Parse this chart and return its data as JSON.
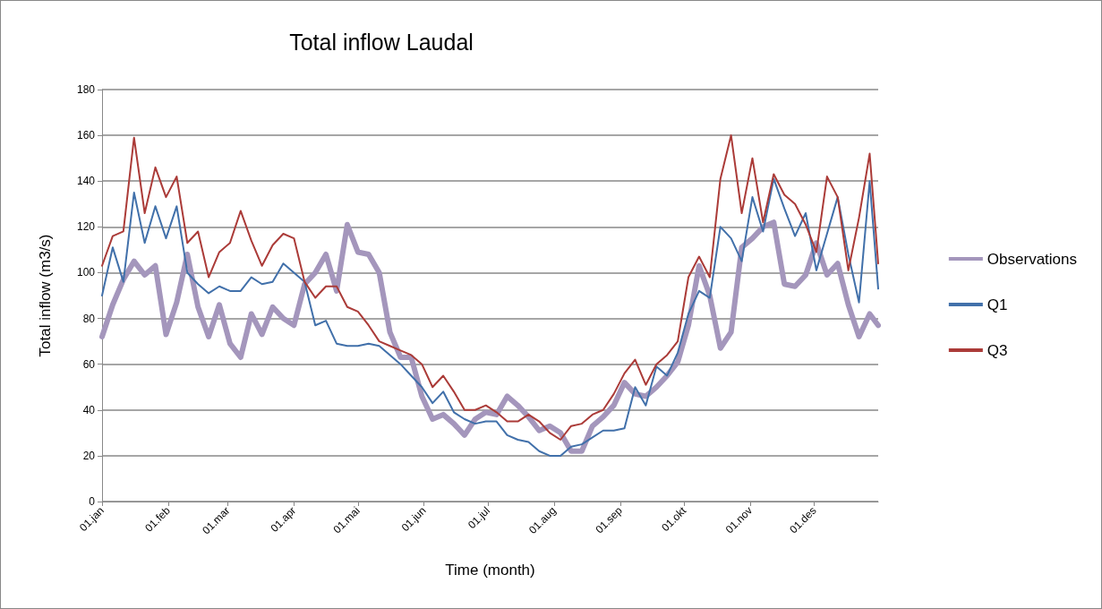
{
  "chart_data": {
    "type": "line",
    "title": "Total inflow Laudal",
    "xlabel": "Time (month)",
    "ylabel": "Total inflow (m3/s)",
    "x": [
      "--01-01",
      "--01-06",
      "--01-11",
      "--01-16",
      "--01-21",
      "--01-26",
      "--01-31",
      "--02-05",
      "--02-10",
      "--02-15",
      "--02-20",
      "--02-25",
      "--03-02",
      "--03-07",
      "--03-12",
      "--03-17",
      "--03-22",
      "--03-27",
      "--04-01",
      "--04-06",
      "--04-11",
      "--04-16",
      "--04-21",
      "--04-26",
      "--05-01",
      "--05-06",
      "--05-11",
      "--05-16",
      "--05-21",
      "--05-26",
      "--05-31",
      "--06-05",
      "--06-10",
      "--06-15",
      "--06-20",
      "--06-25",
      "--06-30",
      "--07-05",
      "--07-10",
      "--07-15",
      "--07-20",
      "--07-25",
      "--07-30",
      "--08-04",
      "--08-09",
      "--08-14",
      "--08-19",
      "--08-24",
      "--08-29",
      "--09-03",
      "--09-08",
      "--09-13",
      "--09-18",
      "--09-23",
      "--09-28",
      "--10-03",
      "--10-08",
      "--10-13",
      "--10-18",
      "--10-23",
      "--10-28",
      "--11-02",
      "--11-07",
      "--11-12",
      "--11-17",
      "--11-22",
      "--11-27",
      "--12-02",
      "--12-07",
      "--12-12",
      "--12-17",
      "--12-22",
      "--12-27",
      "--12-31"
    ],
    "series": [
      {
        "name": "Observations",
        "color": "#a496bc",
        "values": [
          72,
          86,
          97,
          105,
          99,
          103,
          73,
          87,
          108,
          85,
          72,
          86,
          69,
          63,
          82,
          73,
          85,
          80,
          77,
          95,
          100,
          108,
          92,
          121,
          109,
          108,
          100,
          74,
          63,
          63,
          46,
          36,
          38,
          34,
          29,
          36,
          39,
          38,
          46,
          42,
          37,
          31,
          33,
          30,
          22,
          22,
          33,
          37,
          42,
          52,
          47,
          46,
          50,
          55,
          61,
          77,
          103,
          90,
          67,
          74,
          111,
          115,
          120,
          122,
          95,
          94,
          99,
          113,
          99,
          104,
          86,
          72,
          82,
          77
        ]
      },
      {
        "name": "Q1",
        "color": "#4170aa",
        "values": [
          90,
          111,
          96,
          135,
          113,
          129,
          115,
          129,
          100,
          95,
          91,
          94,
          92,
          92,
          98,
          95,
          96,
          104,
          100,
          96,
          77,
          79,
          69,
          68,
          68,
          69,
          68,
          64,
          60,
          55,
          50,
          43,
          48,
          39,
          36,
          34,
          35,
          35,
          29,
          27,
          26,
          22,
          20,
          20,
          24,
          25,
          28,
          31,
          31,
          32,
          50,
          42,
          59,
          55,
          65,
          82,
          92,
          89,
          120,
          115,
          105,
          133,
          118,
          141,
          128,
          116,
          126,
          101,
          117,
          133,
          108,
          87,
          140,
          93
        ]
      },
      {
        "name": "Q3",
        "color": "#ab3b38",
        "values": [
          103,
          116,
          118,
          159,
          126,
          146,
          133,
          142,
          113,
          118,
          98,
          109,
          113,
          127,
          114,
          103,
          112,
          117,
          115,
          96,
          89,
          94,
          94,
          85,
          83,
          77,
          70,
          68,
          66,
          64,
          60,
          50,
          55,
          48,
          40,
          40,
          42,
          39,
          35,
          35,
          38,
          35,
          30,
          27,
          33,
          34,
          38,
          40,
          47,
          56,
          62,
          51,
          60,
          64,
          70,
          98,
          107,
          98,
          141,
          160,
          126,
          150,
          122,
          143,
          134,
          130,
          121,
          109,
          142,
          133,
          101,
          124,
          152,
          104
        ]
      }
    ],
    "xlim": [
      "--01-01",
      "--12-31"
    ],
    "xticks": [
      {
        "value": "--01-01",
        "label": "01.jan"
      },
      {
        "value": "--02-01",
        "label": "01.feb"
      },
      {
        "value": "--03-01",
        "label": "01.mar"
      },
      {
        "value": "--04-01",
        "label": "01.apr"
      },
      {
        "value": "--05-01",
        "label": "01.mai"
      },
      {
        "value": "--06-01",
        "label": "01.jun"
      },
      {
        "value": "--07-01",
        "label": "01.jul"
      },
      {
        "value": "--08-01",
        "label": "01.aug"
      },
      {
        "value": "--09-01",
        "label": "01.sep"
      },
      {
        "value": "--10-01",
        "label": "01.okt"
      },
      {
        "value": "--11-01",
        "label": "01.nov"
      },
      {
        "value": "--12-01",
        "label": "01.des"
      }
    ],
    "ylim": [
      0,
      180
    ],
    "yticks": [
      0,
      20,
      40,
      60,
      80,
      100,
      120,
      140,
      160,
      180
    ],
    "grid": "y",
    "legend": "right",
    "marker": "none",
    "line_style": "solid"
  }
}
